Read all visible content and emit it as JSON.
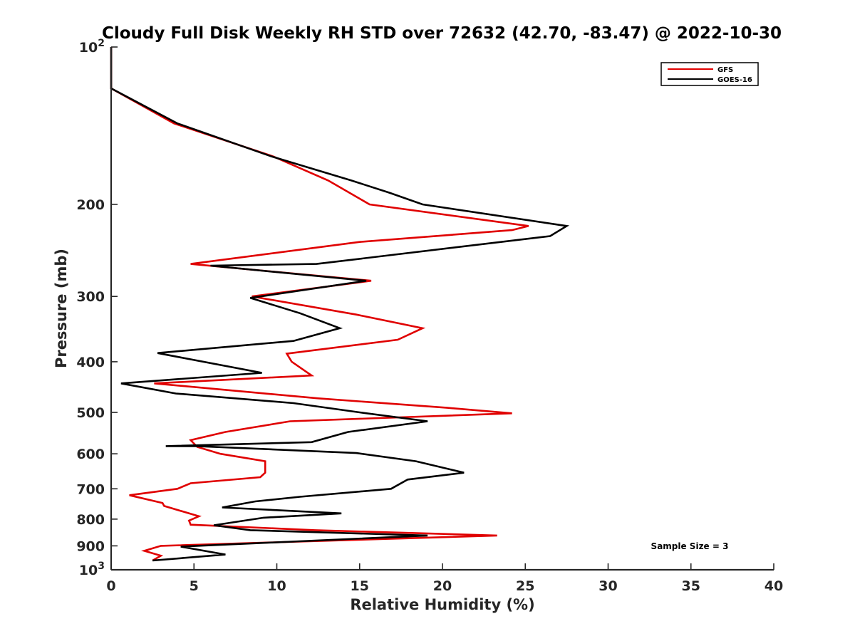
{
  "chart_data": {
    "type": "line",
    "title": "Cloudy Full Disk Weekly RH STD over 72632 (42.70, -83.47) @ 2022-10-30",
    "xlabel": "Relative Humidity (%)",
    "ylabel": "Pressure (mb)",
    "xlim": [
      0,
      40
    ],
    "ylim": [
      100,
      1000
    ],
    "yscale": "log",
    "y_reversed": true,
    "x_ticks": [
      "0",
      "5",
      "10",
      "15",
      "20",
      "25",
      "30",
      "35",
      "40"
    ],
    "y_ticks": [
      {
        "value": 100,
        "label": "10",
        "sup": "2"
      },
      {
        "value": 200,
        "label": "200"
      },
      {
        "value": 300,
        "label": "300"
      },
      {
        "value": 400,
        "label": "400"
      },
      {
        "value": 500,
        "label": "500"
      },
      {
        "value": 600,
        "label": "600"
      },
      {
        "value": 700,
        "label": "700"
      },
      {
        "value": 800,
        "label": "800"
      },
      {
        "value": 900,
        "label": "900"
      },
      {
        "value": 1000,
        "label": "10",
        "sup": "3"
      }
    ],
    "legend_position": "top-right",
    "annotation": "Sample Size = 3",
    "series": [
      {
        "name": "GFS",
        "color": "#e00000",
        "x": [
          0,
          0,
          3.8,
          9.8,
          13.1,
          15.6,
          25.2,
          24.2,
          15.0,
          4.8,
          15.7,
          8.5,
          14.8,
          18.8,
          17.3,
          10.6,
          10.9,
          12.1,
          2.6,
          12.5,
          20.3,
          24.2,
          10.8,
          6.9,
          4.8,
          5.2,
          6.6,
          9.3,
          9.3,
          9.0,
          4.8,
          4.0,
          1.1,
          3.1,
          3.2,
          5.3,
          4.7,
          4.8,
          12.3,
          23.3,
          3.0,
          2.0,
          3.0,
          2.5
        ],
        "y": [
          100,
          120,
          140,
          162,
          180,
          200,
          220,
          224,
          236,
          260,
          280,
          300,
          325,
          345,
          363,
          386,
          400,
          425,
          440,
          470,
          490,
          502,
          520,
          545,
          565,
          582,
          600,
          620,
          652,
          665,
          683,
          700,
          720,
          745,
          755,
          790,
          805,
          820,
          840,
          860,
          900,
          920,
          940,
          960
        ]
      },
      {
        "name": "GOES-16",
        "color": "#000000",
        "x": [
          0,
          0,
          4.0,
          9.7,
          14.5,
          16.8,
          18.8,
          27.5,
          26.5,
          12.4,
          6.0,
          15.4,
          8.4,
          11.4,
          13.8,
          11.0,
          2.8,
          9.1,
          0.6,
          3.9,
          11.0,
          15.0,
          19.1,
          14.3,
          12.1,
          3.3,
          5.2,
          14.8,
          18.4,
          21.3,
          17.9,
          16.9,
          11.4,
          8.7,
          6.7,
          13.9,
          9.2,
          6.2,
          8.4,
          19.1,
          4.2,
          6.9,
          2.5
        ],
        "y": [
          100,
          120,
          140,
          162,
          180,
          190,
          200,
          220,
          230,
          260,
          262,
          280,
          302,
          323,
          345,
          365,
          385,
          420,
          440,
          460,
          480,
          500,
          520,
          545,
          570,
          580,
          580,
          598,
          620,
          652,
          672,
          700,
          725,
          740,
          760,
          780,
          795,
          822,
          840,
          860,
          903,
          935,
          960
        ]
      }
    ]
  }
}
